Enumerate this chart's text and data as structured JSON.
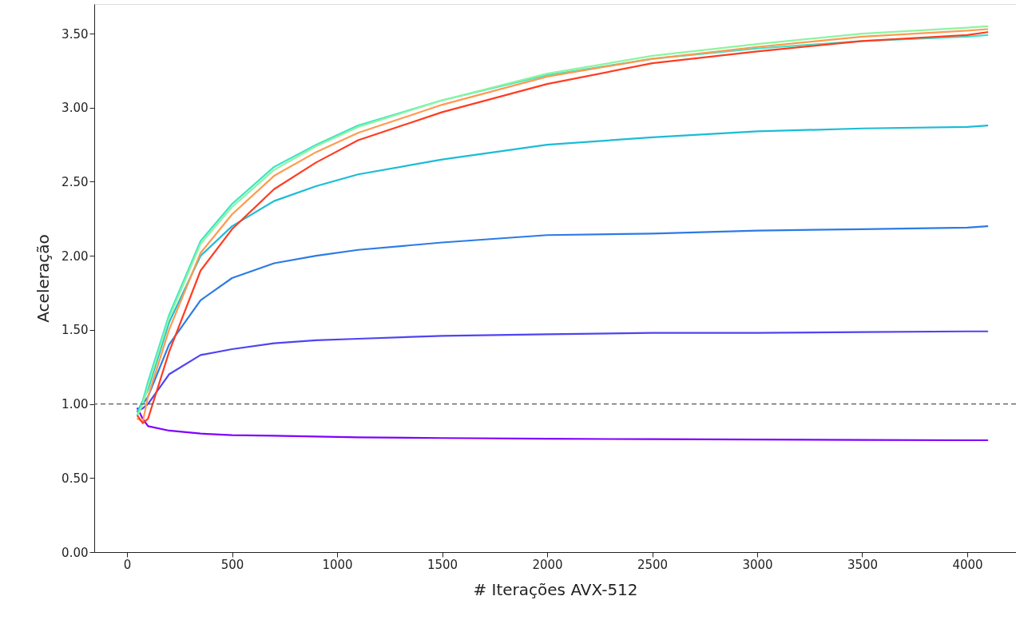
{
  "chart_data": {
    "type": "line",
    "xlabel": "# Iterações AVX-512",
    "ylabel": "Aceleração",
    "x": [
      50,
      75,
      100,
      200,
      350,
      500,
      700,
      900,
      1100,
      1500,
      2000,
      2500,
      3000,
      3500,
      4000,
      4096
    ],
    "xlim": [
      -156,
      4232
    ],
    "xticks": [
      0,
      500,
      1000,
      1500,
      2000,
      2500,
      3000,
      3500,
      4000
    ],
    "ylim": [
      0,
      3.7
    ],
    "yticks": [
      {
        "value": 0,
        "label": "0.00"
      },
      {
        "value": 0.5,
        "label": "0.50"
      },
      {
        "value": 1,
        "label": "1.00"
      },
      {
        "value": 1.5,
        "label": "1.50"
      },
      {
        "value": 2,
        "label": "2.00"
      },
      {
        "value": 2.5,
        "label": "2.50"
      },
      {
        "value": 3,
        "label": "3.00"
      },
      {
        "value": 3.5,
        "label": "3.50"
      }
    ],
    "grid": false,
    "marker": "none",
    "line_style": "solid",
    "ref_lines": [
      {
        "axis": "y",
        "value": 1,
        "color": "#555555",
        "line_style": "dashed"
      }
    ],
    "series": [
      {
        "color": "#8000ff",
        "values": [
          0.97,
          0.9,
          0.85,
          0.82,
          0.8,
          0.79,
          0.785,
          0.78,
          0.775,
          0.77,
          0.765,
          0.762,
          0.76,
          0.757,
          0.755,
          0.755
        ]
      },
      {
        "color": "#4f44f2",
        "values": [
          0.95,
          0.97,
          1.0,
          1.2,
          1.33,
          1.37,
          1.41,
          1.43,
          1.44,
          1.46,
          1.47,
          1.48,
          1.48,
          1.485,
          1.49,
          1.49
        ]
      },
      {
        "color": "#2c7be5",
        "values": [
          0.95,
          1.0,
          1.05,
          1.4,
          1.7,
          1.85,
          1.95,
          2.0,
          2.04,
          2.09,
          2.14,
          2.15,
          2.17,
          2.18,
          2.19,
          2.2
        ]
      },
      {
        "color": "#1cbcd6",
        "values": [
          0.95,
          1.02,
          1.1,
          1.55,
          2.0,
          2.2,
          2.37,
          2.47,
          2.55,
          2.65,
          2.75,
          2.8,
          2.84,
          2.86,
          2.87,
          2.88
        ]
      },
      {
        "color": "#3fe3c8",
        "values": [
          0.93,
          1.02,
          1.15,
          1.6,
          2.1,
          2.35,
          2.6,
          2.75,
          2.88,
          3.05,
          3.22,
          3.33,
          3.4,
          3.45,
          3.48,
          3.49
        ]
      },
      {
        "color": "#8cf5a0",
        "values": [
          0.92,
          1.0,
          1.12,
          1.58,
          2.08,
          2.33,
          2.58,
          2.74,
          2.87,
          3.05,
          3.23,
          3.35,
          3.43,
          3.5,
          3.54,
          3.55
        ]
      },
      {
        "color": "#ff9a50",
        "values": [
          0.9,
          0.88,
          1.05,
          1.5,
          2.02,
          2.28,
          2.54,
          2.7,
          2.83,
          3.02,
          3.21,
          3.33,
          3.41,
          3.48,
          3.52,
          3.53
        ]
      },
      {
        "color": "#ff3c22",
        "values": [
          0.92,
          0.87,
          0.9,
          1.35,
          1.9,
          2.18,
          2.45,
          2.63,
          2.78,
          2.97,
          3.16,
          3.3,
          3.38,
          3.45,
          3.49,
          3.51
        ]
      }
    ]
  }
}
